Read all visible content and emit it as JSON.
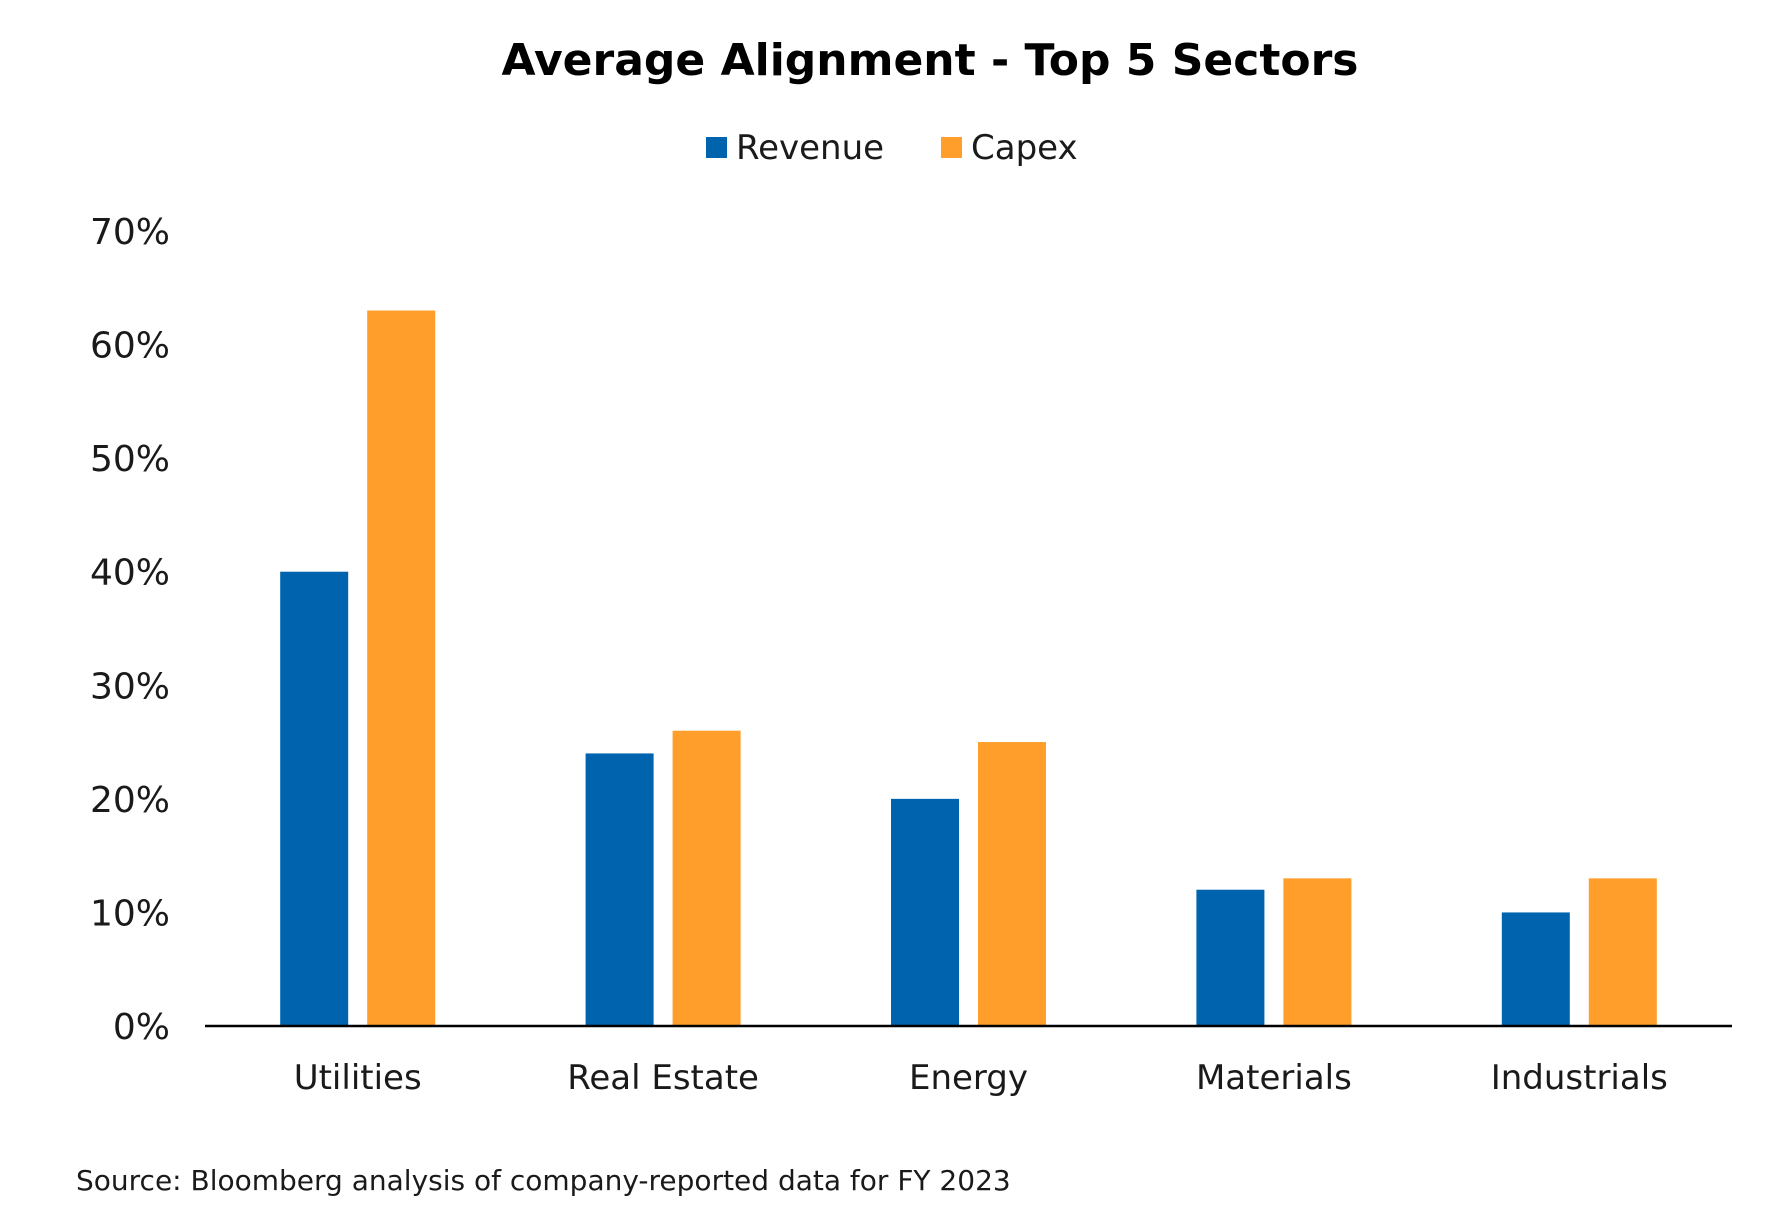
{
  "chart_data": {
    "type": "bar",
    "title": "Average Alignment - Top 5 Sectors",
    "categories": [
      "Utilities",
      "Real Estate",
      "Energy",
      "Materials",
      "Industrials"
    ],
    "series": [
      {
        "name": "Revenue",
        "color": "#0063AE",
        "values": [
          40,
          24,
          20,
          12,
          10
        ]
      },
      {
        "name": "Capex",
        "color": "#FF9E2A",
        "values": [
          63,
          26,
          25,
          13,
          13
        ]
      }
    ],
    "ylim": [
      0,
      70
    ],
    "yticks": [
      0,
      10,
      20,
      30,
      40,
      50,
      60,
      70
    ],
    "ytick_labels": [
      "0%",
      "10%",
      "20%",
      "30%",
      "40%",
      "50%",
      "60%",
      "70%"
    ],
    "y_unit": "%",
    "grid": false,
    "legend_position": "top-center",
    "source": "Source: Bloomberg analysis of company-reported data for FY 2023"
  }
}
